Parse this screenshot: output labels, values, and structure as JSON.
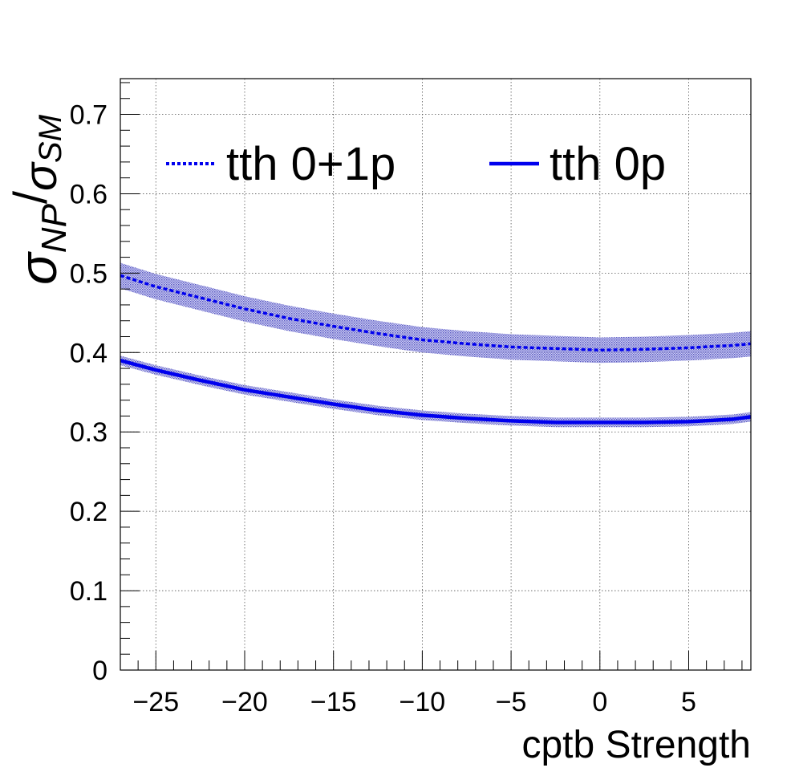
{
  "chart_data": {
    "type": "line",
    "title": "",
    "xlabel": "cptb Strength",
    "ylabel_main": "σ",
    "ylabel_main_sub": "NP",
    "ylabel_slash": "/",
    "ylabel_den": "σ",
    "ylabel_den_sub": "SM",
    "xlim": [
      -27,
      8.5
    ],
    "ylim": [
      0,
      0.745
    ],
    "x_ticks": [
      -25,
      -20,
      -15,
      -10,
      -5,
      0,
      5
    ],
    "x_tick_labels": [
      "−25",
      "−20",
      "−15",
      "−10",
      "−5",
      "0",
      "5"
    ],
    "y_ticks": [
      0,
      0.1,
      0.2,
      0.3,
      0.4,
      0.5,
      0.6,
      0.7
    ],
    "y_tick_labels": [
      "0",
      "0.1",
      "0.2",
      "0.3",
      "0.4",
      "0.5",
      "0.6",
      "0.7"
    ],
    "grid": true,
    "legend_position": "top",
    "x": [
      -27,
      -25,
      -22.5,
      -20,
      -17.5,
      -15,
      -12.5,
      -10,
      -7.5,
      -5,
      -2.5,
      0,
      2.5,
      5,
      7.5,
      8.5
    ],
    "series": [
      {
        "name": "tth 0+1p",
        "style": "dotted",
        "color": "#0000ee",
        "band_color": "#3a3ab8",
        "values": [
          0.497,
          0.483,
          0.469,
          0.455,
          0.443,
          0.433,
          0.424,
          0.416,
          0.411,
          0.407,
          0.405,
          0.403,
          0.404,
          0.406,
          0.409,
          0.411
        ],
        "band_halfwidth": [
          0.016,
          0.016,
          0.016,
          0.016,
          0.016,
          0.016,
          0.016,
          0.016,
          0.016,
          0.016,
          0.016,
          0.016,
          0.016,
          0.016,
          0.016,
          0.016
        ]
      },
      {
        "name": "tth 0p",
        "style": "solid",
        "color": "#0000ee",
        "band_color": "#3a3ab8",
        "values": [
          0.39,
          0.378,
          0.365,
          0.353,
          0.344,
          0.335,
          0.327,
          0.321,
          0.317,
          0.314,
          0.312,
          0.312,
          0.312,
          0.313,
          0.316,
          0.319
        ],
        "band_halfwidth": [
          0.006,
          0.006,
          0.006,
          0.006,
          0.006,
          0.006,
          0.006,
          0.006,
          0.006,
          0.006,
          0.006,
          0.006,
          0.006,
          0.006,
          0.006,
          0.006
        ]
      }
    ]
  }
}
